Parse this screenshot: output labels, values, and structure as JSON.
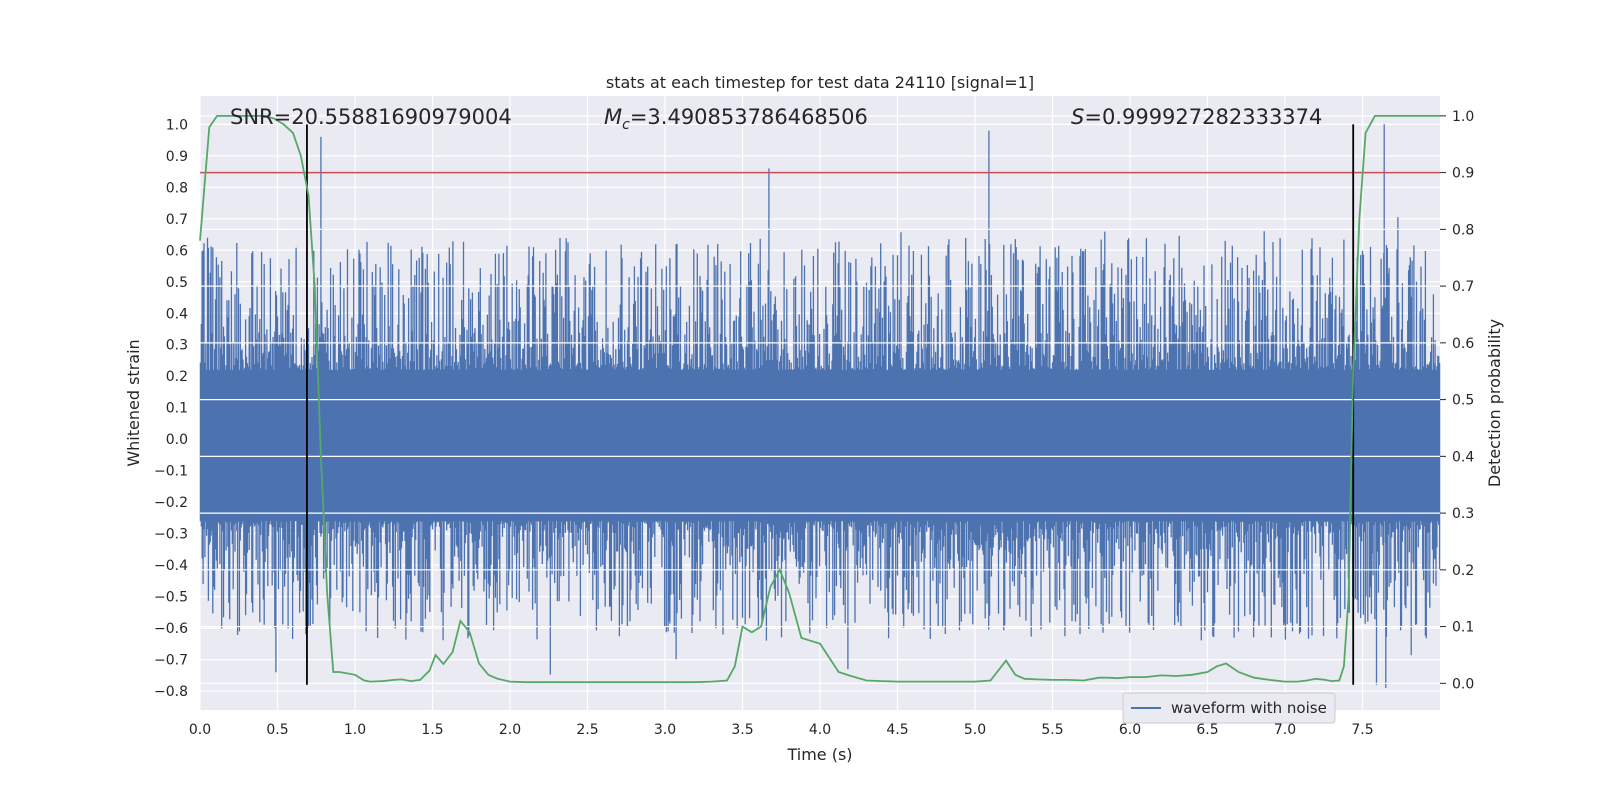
{
  "chart_data": {
    "type": "line",
    "title": "stats at each timestep for test data 24110 [signal=1]",
    "xlabel": "Time (s)",
    "ylabel_left": "Whitened strain",
    "ylabel_right": "Detection probability",
    "xlim": [
      0,
      8.0
    ],
    "ylim_left": [
      -0.86,
      1.09
    ],
    "ylim_right": [
      -0.047,
      1.035
    ],
    "x_ticks": [
      "0.0",
      "0.5",
      "1.0",
      "1.5",
      "2.0",
      "2.5",
      "3.0",
      "3.5",
      "4.0",
      "4.5",
      "5.0",
      "5.5",
      "6.0",
      "6.5",
      "7.0",
      "7.5"
    ],
    "y_ticks_left": [
      "1.0",
      "0.9",
      "0.8",
      "0.7",
      "0.6",
      "0.5",
      "0.4",
      "0.3",
      "0.2",
      "0.1",
      "0.0",
      "−0.1",
      "−0.2",
      "−0.3",
      "−0.4",
      "−0.5",
      "−0.6",
      "−0.7",
      "−0.8"
    ],
    "y_ticks_right": [
      "1.0",
      "0.9",
      "0.8",
      "0.7",
      "0.6",
      "0.5",
      "0.4",
      "0.3",
      "0.2",
      "0.1",
      "0.0"
    ],
    "grid": true,
    "legend": {
      "placement": "lower-right",
      "entries": [
        "waveform with noise"
      ]
    },
    "annotations": {
      "snr": "SNR=20.55881690979004",
      "mc_symbol": "M",
      "mc_sub": "c",
      "mc_value": "=3.490853786468506",
      "s_symbol": "S",
      "s_value": "=0.999927282333374"
    },
    "threshold_line": {
      "y_right": 0.9,
      "color": "#c44e52"
    },
    "vertical_lines": {
      "x": [
        0.69,
        7.44
      ],
      "y_range_left": [
        -0.78,
        1.0
      ],
      "color": "#000000"
    },
    "series": [
      {
        "name": "waveform with noise",
        "color": "#4c72b0",
        "axis": "left",
        "description_points": {
          "band_positive": 0.22,
          "band_negative": -0.26,
          "peaks": [
            {
              "x": 0.02,
              "y": 0.6
            },
            {
              "x": 0.78,
              "y": 0.96
            },
            {
              "x": 3.67,
              "y": 0.86
            },
            {
              "x": 5.09,
              "y": 0.98
            },
            {
              "x": 7.64,
              "y": 1.0
            },
            {
              "x": 0.49,
              "y": -0.74
            },
            {
              "x": 4.18,
              "y": -0.73
            },
            {
              "x": 7.59,
              "y": -0.78
            },
            {
              "x": 7.65,
              "y": -0.79
            }
          ]
        }
      },
      {
        "name": "",
        "color": "#55a868",
        "axis": "right",
        "x": [
          0.0,
          0.06,
          0.11,
          0.17,
          0.23,
          0.29,
          0.36,
          0.42,
          0.48,
          0.54,
          0.6,
          0.65,
          0.7,
          0.74,
          0.78,
          0.82,
          0.86,
          0.9,
          1.0,
          1.06,
          1.1,
          1.18,
          1.25,
          1.3,
          1.36,
          1.42,
          1.48,
          1.52,
          1.57,
          1.63,
          1.68,
          1.74,
          1.8,
          1.86,
          1.92,
          2.0,
          2.1,
          2.2,
          2.5,
          2.8,
          3.0,
          3.2,
          3.3,
          3.4,
          3.45,
          3.5,
          3.56,
          3.62,
          3.68,
          3.74,
          3.8,
          3.88,
          3.94,
          4.0,
          4.06,
          4.12,
          4.2,
          4.3,
          4.4,
          4.5,
          4.7,
          4.9,
          5.0,
          5.1,
          5.2,
          5.26,
          5.32,
          5.4,
          5.5,
          5.6,
          5.7,
          5.8,
          5.86,
          5.92,
          6.0,
          6.1,
          6.2,
          6.3,
          6.4,
          6.5,
          6.56,
          6.62,
          6.7,
          6.8,
          6.9,
          7.0,
          7.08,
          7.14,
          7.2,
          7.26,
          7.3,
          7.35,
          7.38,
          7.41,
          7.44,
          7.48,
          7.52,
          7.58,
          7.65,
          7.75,
          8.0
        ],
        "y": [
          0.78,
          0.98,
          1.0,
          1.0,
          1.0,
          1.0,
          1.0,
          1.0,
          0.995,
          0.985,
          0.97,
          0.93,
          0.86,
          0.7,
          0.4,
          0.16,
          0.02,
          0.02,
          0.015,
          0.005,
          0.003,
          0.004,
          0.006,
          0.007,
          0.004,
          0.006,
          0.022,
          0.05,
          0.034,
          0.055,
          0.11,
          0.09,
          0.035,
          0.015,
          0.008,
          0.003,
          0.002,
          0.002,
          0.002,
          0.002,
          0.002,
          0.002,
          0.003,
          0.005,
          0.03,
          0.1,
          0.09,
          0.1,
          0.17,
          0.2,
          0.16,
          0.08,
          0.075,
          0.07,
          0.045,
          0.02,
          0.013,
          0.005,
          0.004,
          0.003,
          0.003,
          0.003,
          0.003,
          0.005,
          0.04,
          0.015,
          0.008,
          0.007,
          0.006,
          0.006,
          0.005,
          0.01,
          0.01,
          0.009,
          0.011,
          0.011,
          0.014,
          0.013,
          0.015,
          0.02,
          0.03,
          0.035,
          0.02,
          0.01,
          0.006,
          0.003,
          0.003,
          0.005,
          0.008,
          0.006,
          0.004,
          0.005,
          0.03,
          0.15,
          0.55,
          0.82,
          0.97,
          1.0,
          1.0,
          1.0,
          1.0
        ]
      }
    ]
  }
}
